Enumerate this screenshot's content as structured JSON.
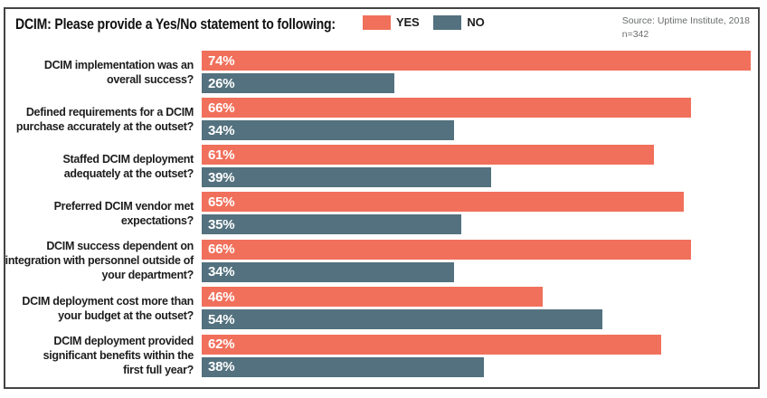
{
  "header": {
    "title": "DCIM: Please provide a Yes/No statement to following:"
  },
  "legend": {
    "yes_label": "YES",
    "no_label": "NO"
  },
  "source": {
    "line1": "Source: Uptime Institute, 2018",
    "line2": "n=342"
  },
  "colors": {
    "yes": "#F1705B",
    "no": "#53717E",
    "frame_border": "#434343",
    "label_text": "#1d1d1d",
    "source_text": "#6a6c6e"
  },
  "chart_data": {
    "type": "bar",
    "orientation": "horizontal",
    "title": "DCIM: Please provide a Yes/No statement to following:",
    "unit": "%",
    "xlim": [
      0,
      76
    ],
    "grid": false,
    "legend_position": "top",
    "value_labels": "inside-left",
    "categories": [
      "DCIM implementation was an overall success?",
      "Defined requirements for a DCIM purchase accurately at the outset?",
      "Staffed DCIM deployment adequately at the outset?",
      "Preferred DCIM vendor met expectations?",
      "DCIM success dependent on integration with personnel outside of your department?",
      "DCIM deployment cost more than your budget at the outset?",
      "DCIM deployment provided significant benefits within the first full year?"
    ],
    "category_lines": [
      [
        "DCIM implementation was an",
        "overall success?"
      ],
      [
        "Defined requirements for a DCIM",
        "purchase accurately at the outset?"
      ],
      [
        "Staffed DCIM deployment",
        "adequately at the outset?"
      ],
      [
        "Preferred DCIM vendor met",
        "expectations?"
      ],
      [
        "DCIM success dependent on",
        "integration with personnel outside of",
        "your department?"
      ],
      [
        "DCIM deployment cost more than",
        "your budget at the outset?"
      ],
      [
        "DCIM deployment provided",
        "significant benefits within the",
        "first full year?"
      ]
    ],
    "series": [
      {
        "name": "YES",
        "color": "#F1705B",
        "values": [
          74,
          66,
          61,
          65,
          66,
          46,
          62
        ]
      },
      {
        "name": "NO",
        "color": "#53717E",
        "values": [
          26,
          34,
          39,
          35,
          34,
          54,
          38
        ]
      }
    ]
  }
}
